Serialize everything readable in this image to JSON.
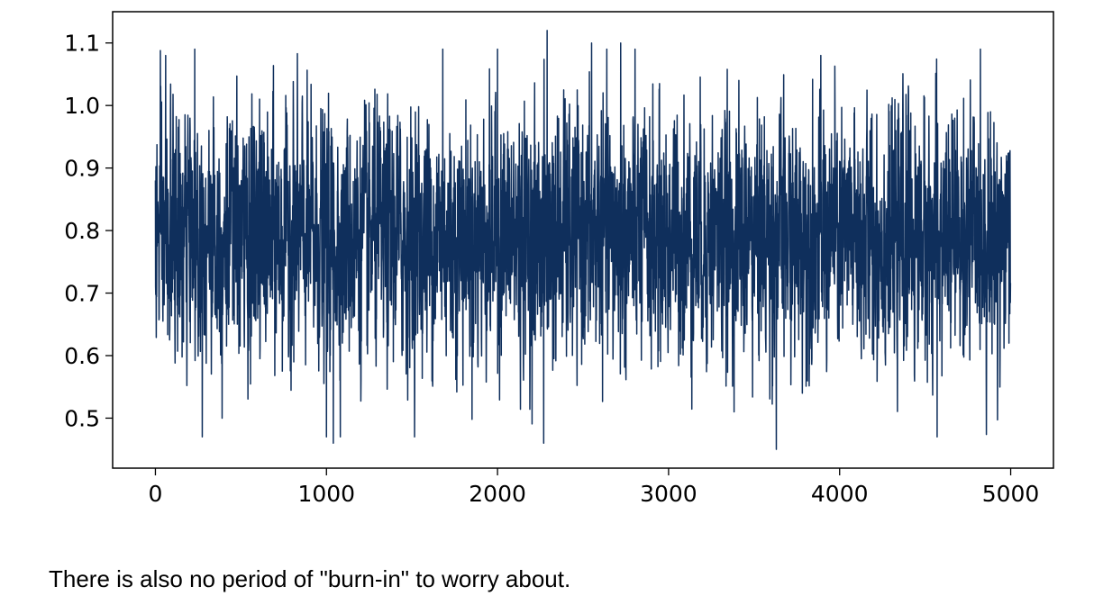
{
  "chart_data": {
    "type": "line",
    "title": "",
    "xlabel": "",
    "ylabel": "",
    "xlim": [
      -250,
      5250
    ],
    "ylim": [
      0.42,
      1.15
    ],
    "xticks": [
      0,
      1000,
      2000,
      3000,
      4000,
      5000
    ],
    "xtick_labels": [
      "0",
      "1000",
      "2000",
      "3000",
      "4000",
      "5000"
    ],
    "yticks": [
      0.5,
      0.6,
      0.7,
      0.8,
      0.9,
      1.0,
      1.1
    ],
    "ytick_labels": [
      "0.5",
      "0.6",
      "0.7",
      "0.8",
      "0.9",
      "1.0",
      "1.1"
    ],
    "grid": false,
    "legend": "none",
    "series": [
      {
        "color": "#0f2f5c",
        "n_points": 5000,
        "mean": 0.79,
        "std": 0.095,
        "x_start": 0,
        "x_end": 4999,
        "min": 0.45,
        "max": 1.12,
        "notable_points": [
          {
            "x": 0,
            "y": 0.88
          },
          {
            "x": 60,
            "y": 1.08
          },
          {
            "x": 230,
            "y": 1.09
          },
          {
            "x": 390,
            "y": 0.5
          },
          {
            "x": 1000,
            "y": 0.47
          },
          {
            "x": 1040,
            "y": 0.46
          },
          {
            "x": 1680,
            "y": 1.09
          },
          {
            "x": 2000,
            "y": 1.09
          },
          {
            "x": 2270,
            "y": 0.46
          },
          {
            "x": 2290,
            "y": 1.12
          },
          {
            "x": 2550,
            "y": 1.1
          },
          {
            "x": 2720,
            "y": 1.1
          },
          {
            "x": 3630,
            "y": 0.45
          },
          {
            "x": 3890,
            "y": 1.08
          },
          {
            "x": 4570,
            "y": 0.47
          },
          {
            "x": 4990,
            "y": 0.62
          }
        ]
      }
    ]
  },
  "caption": "There is also no period of \"burn-in\" to worry about."
}
